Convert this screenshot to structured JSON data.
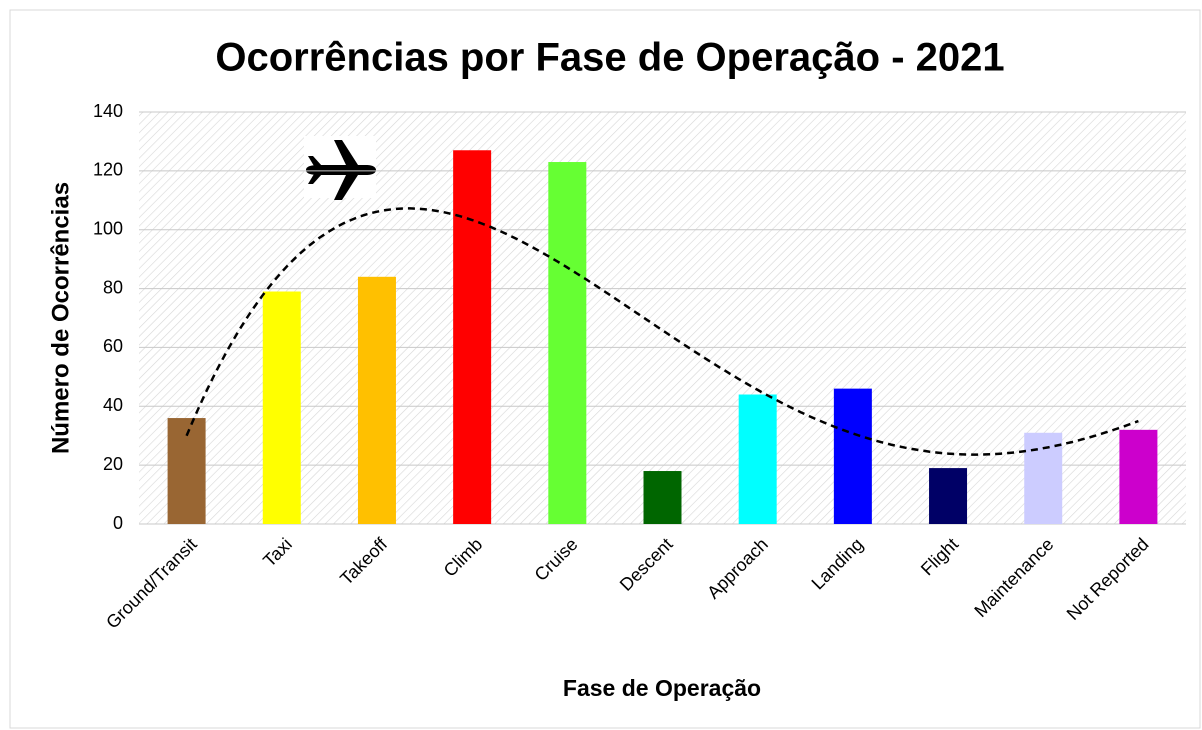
{
  "chart_data": {
    "type": "bar",
    "title": "Ocorrências por Fase de Operação - 2021",
    "x_label": "Fase de Operação",
    "y_label": "Número de Ocorrências",
    "categories": [
      "Ground/Transit",
      "Taxi",
      "Takeoff",
      "Climb",
      "Cruise",
      "Descent",
      "Approach",
      "Landing",
      "Flight",
      "Maintenance",
      "Not Reported"
    ],
    "values": [
      36,
      79,
      84,
      127,
      123,
      18,
      44,
      46,
      19,
      31,
      32
    ],
    "colors": [
      "#996633",
      "#ffff00",
      "#ffc000",
      "#ff0000",
      "#66ff33",
      "#006600",
      "#00ffff",
      "#0000ff",
      "#000066",
      "#ccccff",
      "#cc00cc"
    ],
    "ylim": [
      0,
      140
    ],
    "yticks": [
      0,
      20,
      40,
      60,
      80,
      100,
      120,
      140
    ],
    "grid": true,
    "trendline_order": 4
  }
}
